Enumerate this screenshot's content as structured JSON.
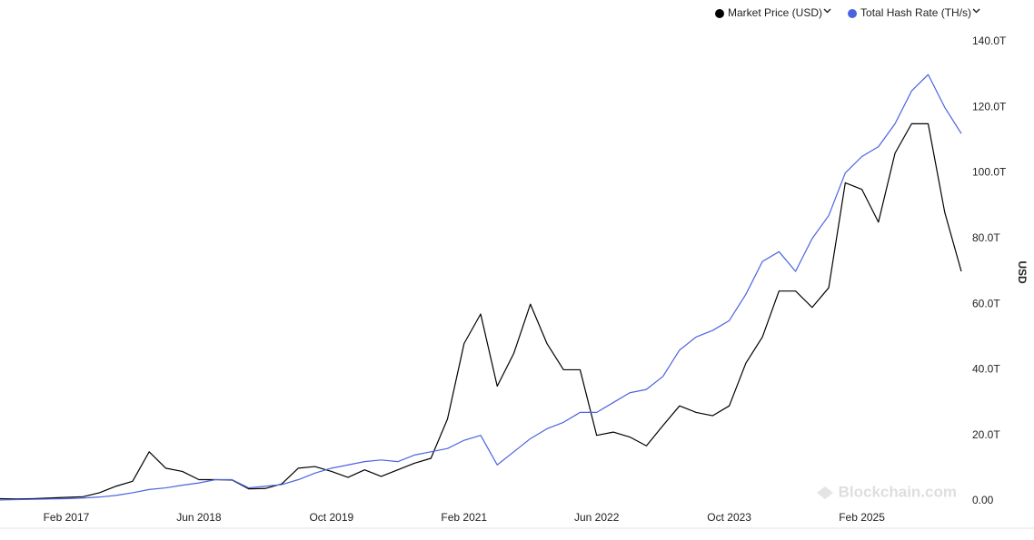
{
  "chart_data": {
    "type": "line",
    "x": [
      "Jun 2016",
      "Aug 2016",
      "Oct 2016",
      "Dec 2016",
      "Feb 2017",
      "Apr 2017",
      "Jun 2017",
      "Aug 2017",
      "Oct 2017",
      "Dec 2017",
      "Feb 2018",
      "Apr 2018",
      "Jun 2018",
      "Aug 2018",
      "Oct 2018",
      "Dec 2018",
      "Feb 2019",
      "Apr 2019",
      "Jun 2019",
      "Aug 2019",
      "Oct 2019",
      "Dec 2019",
      "Feb 2020",
      "Apr 2020",
      "Jun 2020",
      "Aug 2020",
      "Oct 2020",
      "Dec 2020",
      "Feb 2021",
      "Apr 2021",
      "Jun 2021",
      "Aug 2021",
      "Oct 2021",
      "Dec 2021",
      "Feb 2022",
      "Apr 2022",
      "Jun 2022",
      "Aug 2022",
      "Oct 2022",
      "Dec 2022",
      "Feb 2023",
      "Apr 2023",
      "Jun 2023",
      "Aug 2023",
      "Oct 2023",
      "Dec 2023",
      "Feb 2024",
      "Apr 2024",
      "Jun 2024",
      "Aug 2024",
      "Oct 2024",
      "Dec 2024",
      "Feb 2025",
      "Apr 2025",
      "Jun 2025",
      "Aug 2025",
      "Oct 2025",
      "Dec 2025",
      "Feb 2026"
    ],
    "xticks": [
      "Feb 2017",
      "Jun 2018",
      "Oct 2019",
      "Feb 2021",
      "Jun 2022",
      "Oct 2023",
      "Feb 2025"
    ],
    "series": [
      {
        "name": "Market Price (USD)",
        "color": "#000000",
        "axis": "y2",
        "values": [
          700,
          600,
          700,
          900,
          1100,
          1300,
          2500,
          4500,
          6000,
          15000,
          10000,
          9000,
          6500,
          6500,
          6400,
          3700,
          3800,
          5200,
          10000,
          10500,
          9000,
          7200,
          9500,
          7500,
          9500,
          11500,
          13000,
          25000,
          48000,
          57000,
          35000,
          45000,
          60000,
          48000,
          40000,
          40000,
          20000,
          21000,
          19500,
          16800,
          23000,
          29000,
          27000,
          26000,
          29000,
          42000,
          50000,
          64000,
          64000,
          59000,
          65000,
          97000,
          95000,
          85000,
          106000,
          115000,
          115000,
          88000,
          70000
        ]
      },
      {
        "name": "Total Hash Rate (TH/s)",
        "color": "#4a63e0",
        "values": [
          300000000000.0,
          400000000000.0,
          500000000000.0,
          600000000000.0,
          700000000000.0,
          900000000000.0,
          1200000000000.0,
          1700000000000.0,
          2500000000000.0,
          3500000000000.0,
          4000000000000.0,
          4800000000000.0,
          5500000000000.0,
          6500000000000.0,
          6500000000000.0,
          4000000000000.0,
          4500000000000.0,
          5000000000000.0,
          6500000000000.0,
          8500000000000.0,
          10000000000000.0,
          11000000000000.0,
          12000000000000.0,
          12500000000000.0,
          12000000000000.0,
          14000000000000.0,
          15000000000000.0,
          16000000000000.0,
          18500000000000.0,
          20000000000000.0,
          11000000000000.0,
          15000000000000.0,
          19000000000000.0,
          22000000000000.0,
          24000000000000.0,
          27000000000000.0,
          27000000000000.0,
          30000000000000.0,
          33000000000000.0,
          34000000000000.0,
          38000000000000.0,
          46000000000000.0,
          50000000000000.0,
          52000000000000.0,
          55000000000000.0,
          63000000000000.0,
          73000000000000.0,
          76000000000000.0,
          70000000000000.0,
          80000000000000.0,
          87000000000000.0,
          100000000000000.0,
          105000000000000.0,
          108000000000000.0,
          115000000000000.0,
          125000000000000.0,
          130000000000000.0,
          120000000000000.0,
          112000000000000.0
        ]
      }
    ],
    "ylim": [
      0,
      140000000000000.0
    ],
    "yticks": [
      {
        "value": 0,
        "label": "0.00"
      },
      {
        "value": 20000000000000.0,
        "label": "20.0T"
      },
      {
        "value": 40000000000000.0,
        "label": "40.0T"
      },
      {
        "value": 60000000000000.0,
        "label": "60.0T"
      },
      {
        "value": 80000000000000.0,
        "label": "80.0T"
      },
      {
        "value": 100000000000000.0,
        "label": "100.0T"
      },
      {
        "value": 120000000000000.0,
        "label": "120.0T"
      },
      {
        "value": 140000000000000.0,
        "label": "140.0T"
      }
    ],
    "y2lim": [
      0,
      140000
    ],
    "ylabel": "USD",
    "watermark": "Blockchain.com",
    "legend": "top-right"
  }
}
